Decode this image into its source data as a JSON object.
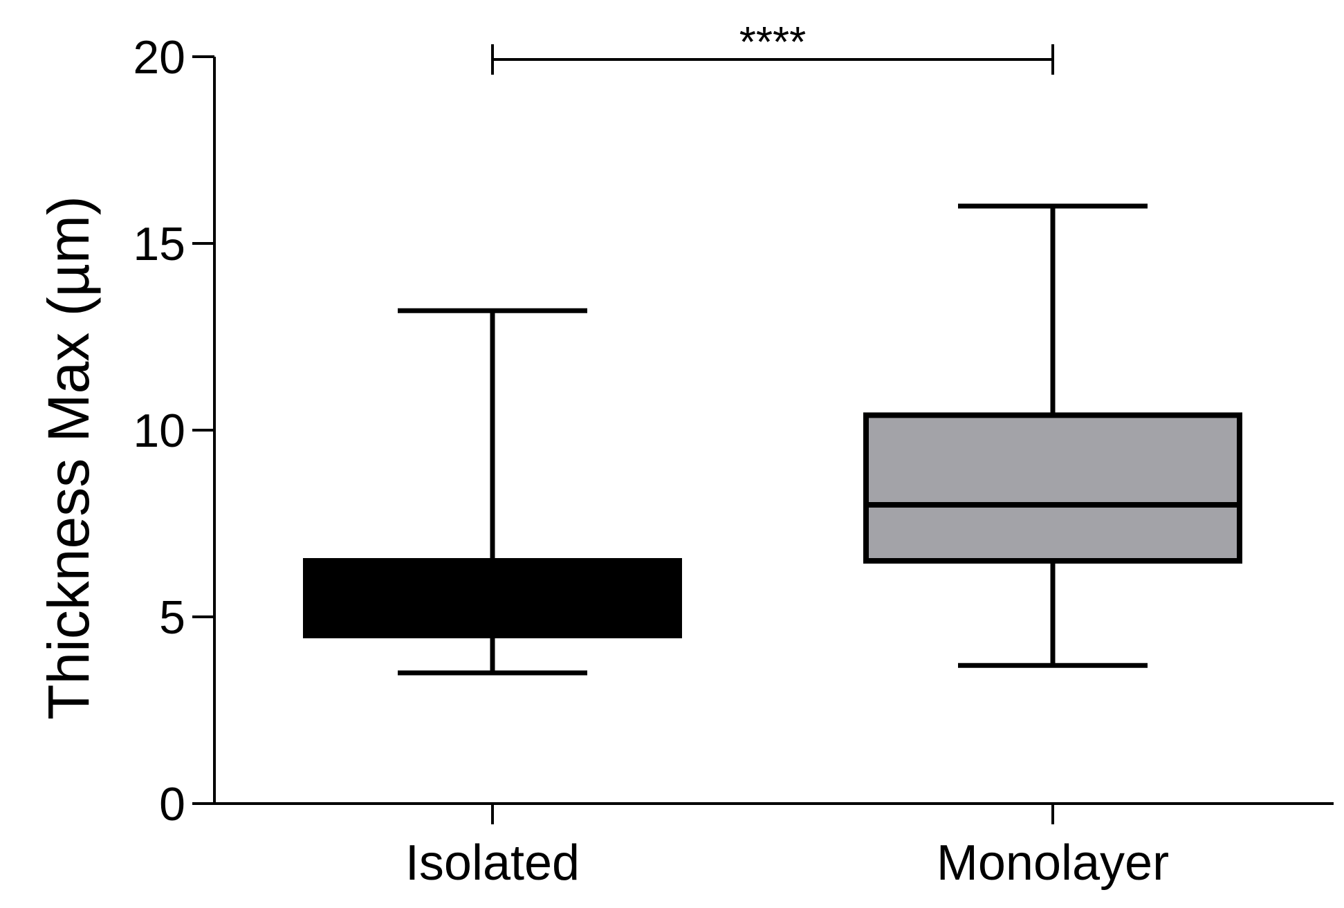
{
  "chart_data": {
    "type": "box",
    "title": "",
    "xlabel": "",
    "ylabel": "Thickness Max (µm)",
    "ylim": [
      0,
      20
    ],
    "yticks": [
      0,
      5,
      10,
      15,
      20
    ],
    "ytick_labels": [
      "0",
      "5",
      "10",
      "15",
      "20"
    ],
    "categories": [
      "Isolated",
      "Monolayer"
    ],
    "boxes": [
      {
        "category": "Isolated",
        "whisker_low": 3.5,
        "q1": 4.5,
        "median": 4.5,
        "q3": 6.5,
        "whisker_high": 13.2,
        "fill": "#000000"
      },
      {
        "category": "Monolayer",
        "whisker_low": 3.7,
        "q1": 6.5,
        "median": 8.0,
        "q3": 10.4,
        "whisker_high": 16.0,
        "fill": "#a3a3a8"
      }
    ],
    "significance": {
      "label": "****",
      "from": "Isolated",
      "to": "Monolayer"
    },
    "grid": false,
    "legend": "none"
  }
}
